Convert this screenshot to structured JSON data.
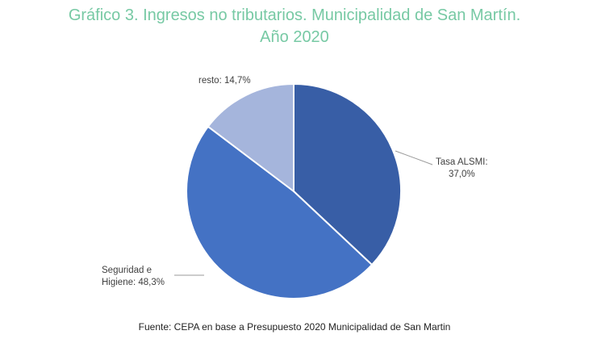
{
  "title": {
    "line1": "Gráfico 3. Ingresos no tributarios. Municipalidad de San Martín.",
    "line2": "Año 2020"
  },
  "source": "Fuente: CEPA en base a Presupuesto 2020 Municipalidad de San Martin",
  "chart_data": {
    "type": "pie",
    "title": "Gráfico 3. Ingresos no tributarios. Municipalidad de San Martín. Año 2020",
    "categories": [
      "Tasa ALSMI",
      "Seguridad e Higiene",
      "resto"
    ],
    "values": [
      37.0,
      48.3,
      14.7
    ],
    "unit": "%",
    "colors": [
      "#385ea6",
      "#4472c4",
      "#a5b5dc"
    ],
    "data_labels": {
      "tasa": [
        "Tasa ALSMI:",
        "37,0%"
      ],
      "seguridad": [
        "Seguridad e",
        "Higiene: 48,3%"
      ],
      "resto": [
        "resto: 14,7%"
      ]
    },
    "legend": "none"
  }
}
